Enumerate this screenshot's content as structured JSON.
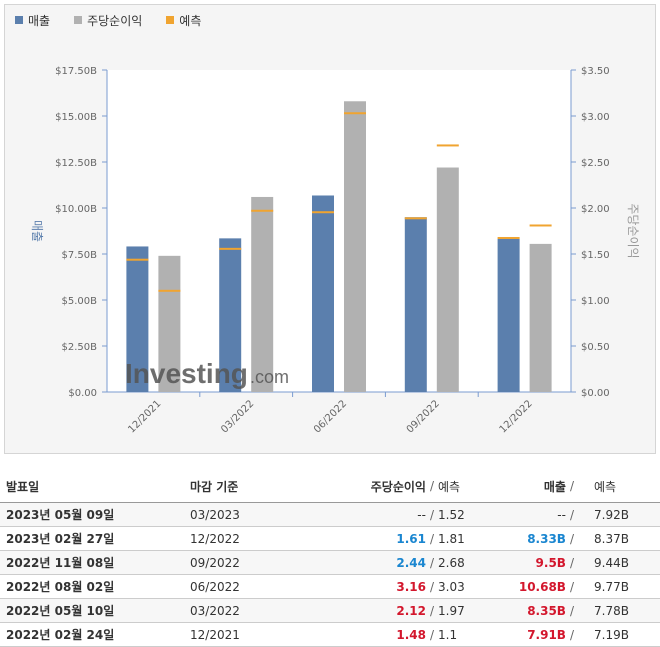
{
  "legend": [
    {
      "label": "매출",
      "color": "#5b7fad"
    },
    {
      "label": "주당순이익",
      "color": "#b1b1b1"
    },
    {
      "label": "예측",
      "color": "#f0a430"
    }
  ],
  "watermark": {
    "brand": "Investing",
    "suffix": ".com"
  },
  "chart_data": {
    "type": "bar",
    "categories": [
      "12/2021",
      "03/2022",
      "06/2022",
      "09/2022",
      "12/2022"
    ],
    "series": [
      {
        "name": "매출",
        "axis": "left",
        "values": [
          7.91,
          8.35,
          10.68,
          9.5,
          8.33
        ],
        "forecast": [
          7.19,
          7.78,
          9.77,
          9.44,
          8.37
        ],
        "color": "#5b7fad"
      },
      {
        "name": "주당순이익",
        "axis": "right",
        "values": [
          1.48,
          2.12,
          3.16,
          2.44,
          1.61
        ],
        "forecast": [
          1.1,
          1.97,
          3.03,
          2.68,
          1.81
        ],
        "color": "#b1b1b1"
      }
    ],
    "forecast_color": "#f0a430",
    "y_left": {
      "label": "매출",
      "ticks": [
        "$0.00",
        "$2.50B",
        "$5.00B",
        "$7.50B",
        "$10.00B",
        "$12.50B",
        "$15.00B",
        "$17.50B"
      ],
      "min": 0,
      "max": 17.5
    },
    "y_right": {
      "label": "주당순이익",
      "ticks": [
        "$0.00",
        "$0.50",
        "$1.00",
        "$1.50",
        "$2.00",
        "$2.50",
        "$3.00",
        "$3.50"
      ],
      "min": 0,
      "max": 3.5
    }
  },
  "table": {
    "headers": {
      "date": "발표일",
      "period": "마감 기준",
      "eps": "주당순이익",
      "eps_forecast": "예측",
      "revenue": "매출",
      "revenue_forecast": "예측"
    },
    "rows": [
      {
        "date": "2023년 05월 09일",
        "period": "03/2023",
        "eps": "--",
        "eps_cls": "na",
        "eps_forecast": "1.52",
        "revenue": "--",
        "rev_cls": "na",
        "revenue_forecast": "7.92B"
      },
      {
        "date": "2023년 02월 27일",
        "period": "12/2022",
        "eps": "1.61",
        "eps_cls": "pos",
        "eps_forecast": "1.81",
        "revenue": "8.33B",
        "rev_cls": "pos",
        "revenue_forecast": "8.37B"
      },
      {
        "date": "2022년 11월 08일",
        "period": "09/2022",
        "eps": "2.44",
        "eps_cls": "pos",
        "eps_forecast": "2.68",
        "revenue": "9.5B",
        "rev_cls": "neg",
        "revenue_forecast": "9.44B"
      },
      {
        "date": "2022년 08월 02일",
        "period": "06/2022",
        "eps": "3.16",
        "eps_cls": "neg",
        "eps_forecast": "3.03",
        "revenue": "10.68B",
        "rev_cls": "neg",
        "revenue_forecast": "9.77B"
      },
      {
        "date": "2022년 05월 10일",
        "period": "03/2022",
        "eps": "2.12",
        "eps_cls": "neg",
        "eps_forecast": "1.97",
        "revenue": "8.35B",
        "rev_cls": "neg",
        "revenue_forecast": "7.78B"
      },
      {
        "date": "2022년 02월 24일",
        "period": "12/2021",
        "eps": "1.48",
        "eps_cls": "neg",
        "eps_forecast": "1.1",
        "revenue": "7.91B",
        "rev_cls": "neg",
        "revenue_forecast": "7.19B"
      }
    ]
  }
}
